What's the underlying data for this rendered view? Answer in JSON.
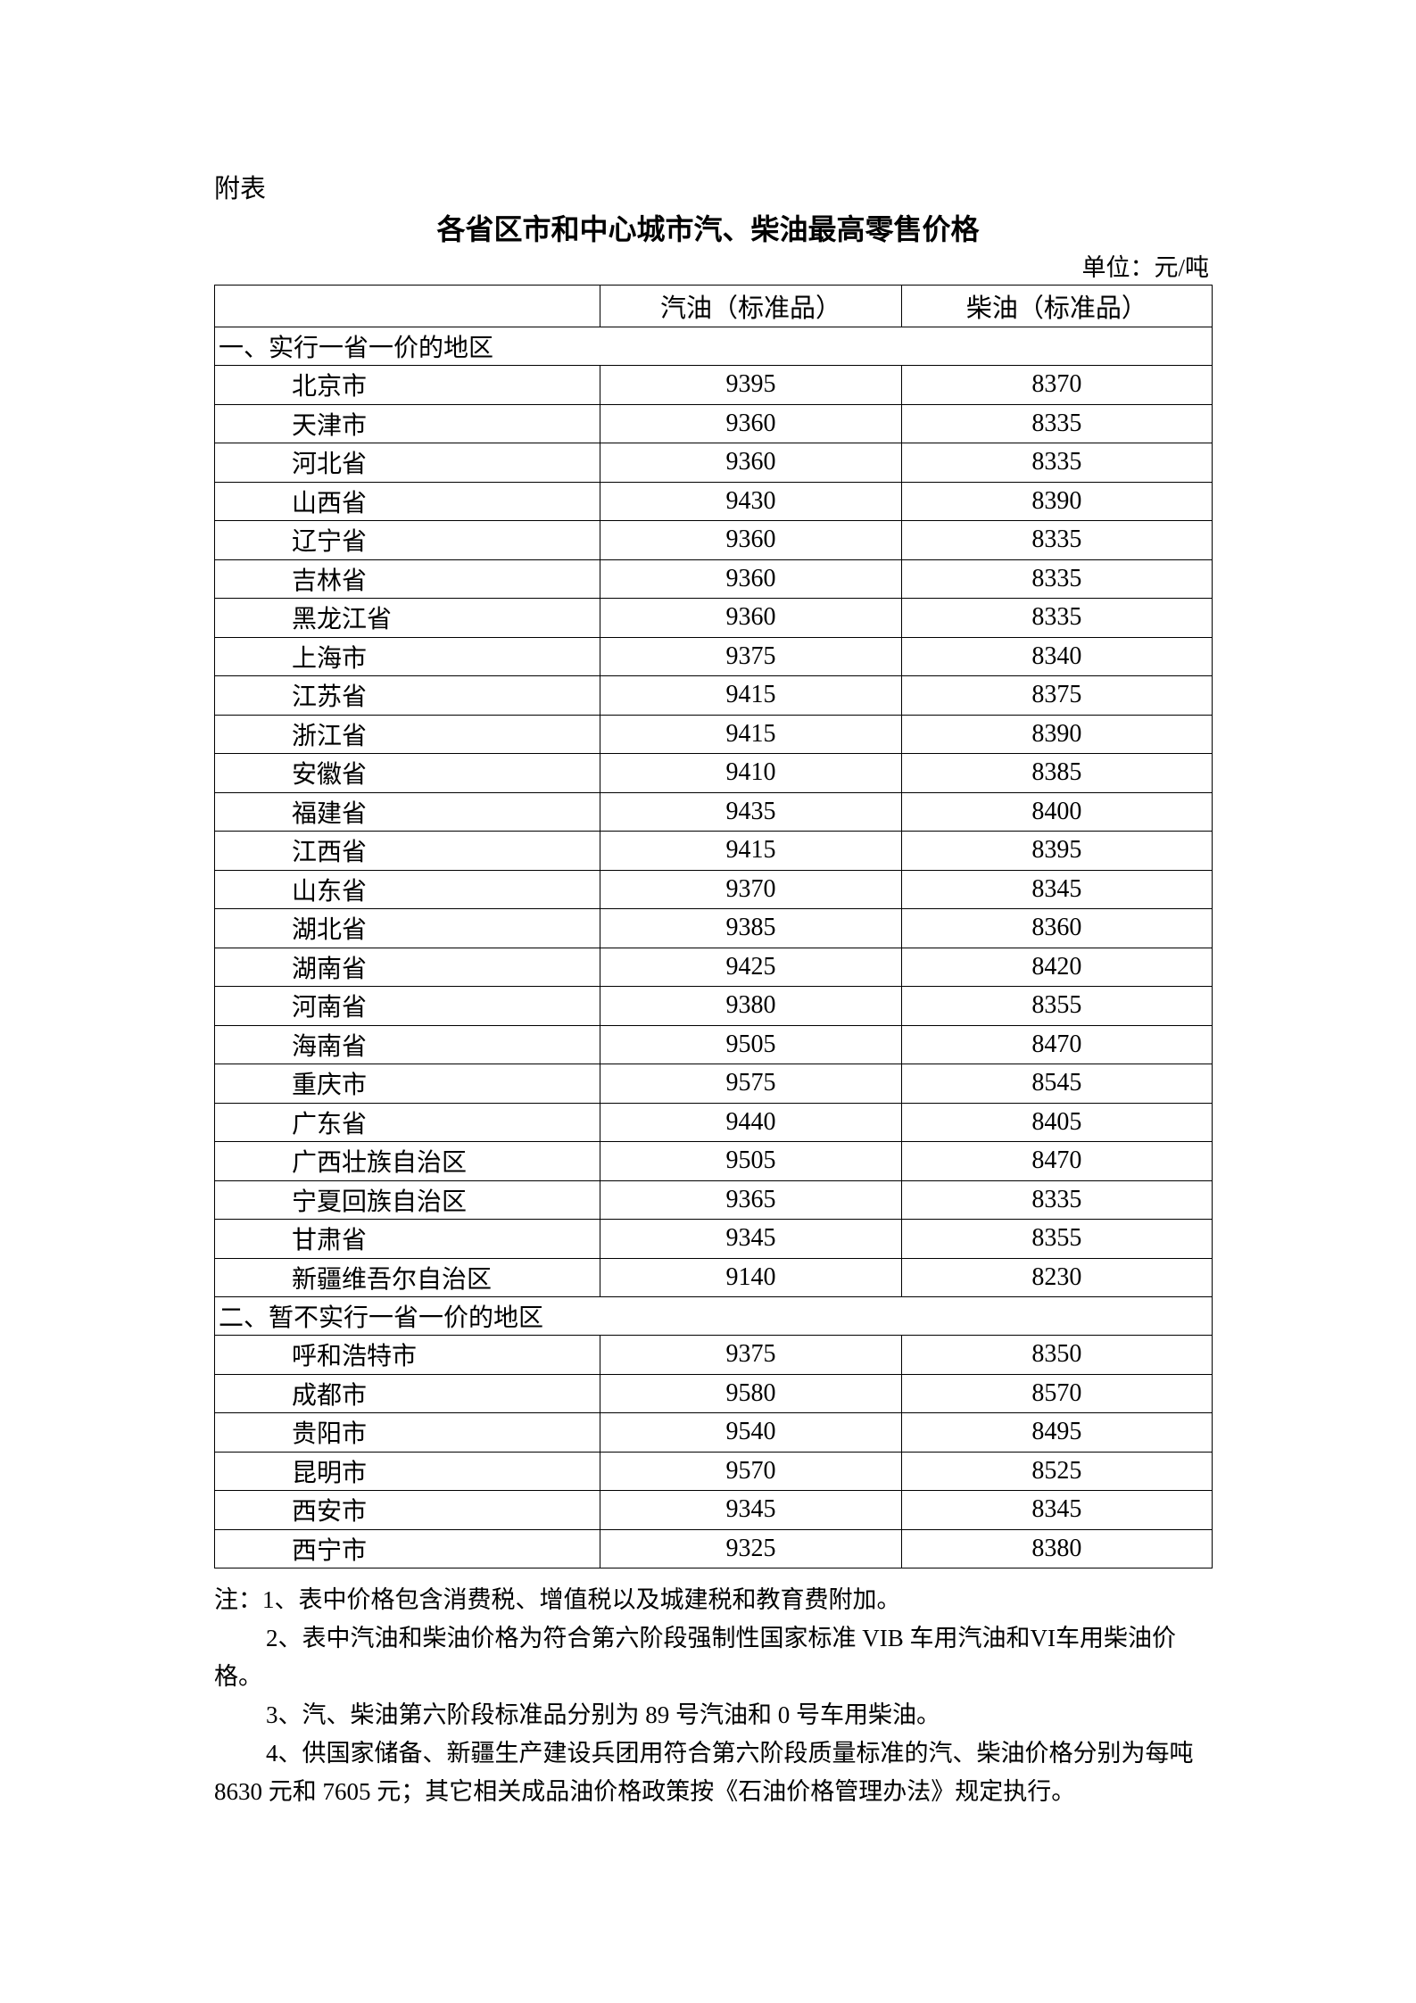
{
  "appendix_label": "附表",
  "title": "各省区市和中心城市汽、柴油最高零售价格",
  "unit": "单位：元/吨",
  "table": {
    "headers": [
      "",
      "汽油（标准品）",
      "柴油（标准品）"
    ],
    "sections": [
      {
        "label": "一、实行一省一价的地区",
        "rows": [
          [
            "北京市",
            "9395",
            "8370"
          ],
          [
            "天津市",
            "9360",
            "8335"
          ],
          [
            "河北省",
            "9360",
            "8335"
          ],
          [
            "山西省",
            "9430",
            "8390"
          ],
          [
            "辽宁省",
            "9360",
            "8335"
          ],
          [
            "吉林省",
            "9360",
            "8335"
          ],
          [
            "黑龙江省",
            "9360",
            "8335"
          ],
          [
            "上海市",
            "9375",
            "8340"
          ],
          [
            "江苏省",
            "9415",
            "8375"
          ],
          [
            "浙江省",
            "9415",
            "8390"
          ],
          [
            "安徽省",
            "9410",
            "8385"
          ],
          [
            "福建省",
            "9435",
            "8400"
          ],
          [
            "江西省",
            "9415",
            "8395"
          ],
          [
            "山东省",
            "9370",
            "8345"
          ],
          [
            "湖北省",
            "9385",
            "8360"
          ],
          [
            "湖南省",
            "9425",
            "8420"
          ],
          [
            "河南省",
            "9380",
            "8355"
          ],
          [
            "海南省",
            "9505",
            "8470"
          ],
          [
            "重庆市",
            "9575",
            "8545"
          ],
          [
            "广东省",
            "9440",
            "8405"
          ],
          [
            "广西壮族自治区",
            "9505",
            "8470"
          ],
          [
            "宁夏回族自治区",
            "9365",
            "8335"
          ],
          [
            "甘肃省",
            "9345",
            "8355"
          ],
          [
            "新疆维吾尔自治区",
            "9140",
            "8230"
          ]
        ]
      },
      {
        "label": "二、暂不实行一省一价的地区",
        "rows": [
          [
            "呼和浩特市",
            "9375",
            "8350"
          ],
          [
            "成都市",
            "9580",
            "8570"
          ],
          [
            "贵阳市",
            "9540",
            "8495"
          ],
          [
            "昆明市",
            "9570",
            "8525"
          ],
          [
            "西安市",
            "9345",
            "8345"
          ],
          [
            "西宁市",
            "9325",
            "8380"
          ]
        ]
      }
    ]
  },
  "notes": [
    "注：1、表中价格包含消费税、增值税以及城建税和教育费附加。",
    "2、表中汽油和柴油价格为符合第六阶段强制性国家标准 VIB 车用汽油和VI车用柴油价格。",
    "3、汽、柴油第六阶段标准品分别为 89 号汽油和 0 号车用柴油。",
    "4、供国家储备、新疆生产建设兵团用符合第六阶段质量标准的汽、柴油价格分别为每吨 8630 元和 7605 元；其它相关成品油价格政策按《石油价格管理办法》规定执行。"
  ]
}
